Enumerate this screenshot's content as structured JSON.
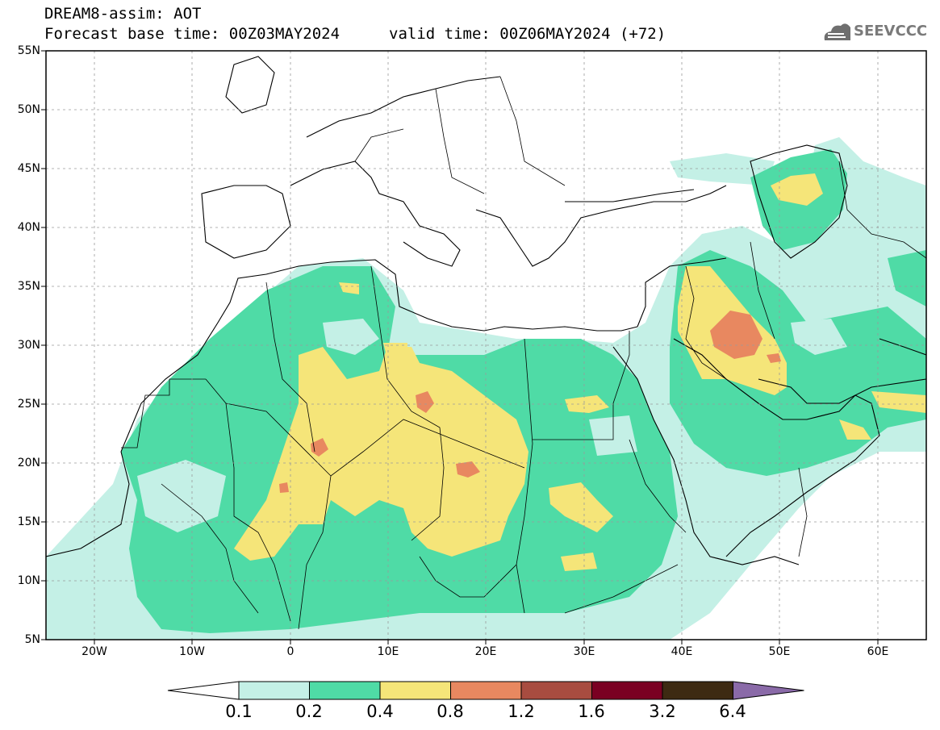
{
  "header": {
    "line1": "DREAM8-assim: AOT",
    "base_time": "Forecast base time: 00Z03MAY2024",
    "valid_time": "valid time: 00Z06MAY2024 (+72)",
    "logo_text": "SEEVCCC"
  },
  "map": {
    "lon_range": [
      -25,
      65
    ],
    "lat_range": [
      5,
      55
    ],
    "lat_labels": [
      "55N",
      "50N",
      "45N",
      "40N",
      "35N",
      "30N",
      "25N",
      "20N",
      "15N",
      "10N",
      "5N"
    ],
    "lon_labels": [
      "20W",
      "10W",
      "0",
      "10E",
      "20E",
      "30E",
      "40E",
      "50E",
      "60E"
    ]
  },
  "legend": {
    "labels": [
      "0.1",
      "0.2",
      "0.4",
      "0.8",
      "1.2",
      "1.6",
      "3.2",
      "6.4"
    ],
    "colors": [
      "#ffffff",
      "#c4f0e6",
      "#4fdba6",
      "#f5e579",
      "#e88860",
      "#a84c40",
      "#7a0022",
      "#3d2a12",
      "#8a6aa8"
    ]
  }
}
